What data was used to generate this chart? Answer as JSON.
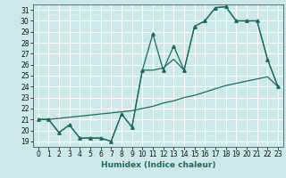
{
  "title": "",
  "xlabel": "Humidex (Indice chaleur)",
  "bg_color": "#cce8e8",
  "grid_color": "#ffffff",
  "line_color": "#1a6b5a",
  "xlim": [
    -0.5,
    23.5
  ],
  "ylim": [
    18.5,
    31.5
  ],
  "xticks": [
    0,
    1,
    2,
    3,
    4,
    5,
    6,
    7,
    8,
    9,
    10,
    11,
    12,
    13,
    14,
    15,
    16,
    17,
    18,
    19,
    20,
    21,
    22,
    23
  ],
  "yticks": [
    19,
    20,
    21,
    22,
    23,
    24,
    25,
    26,
    27,
    28,
    29,
    30,
    31
  ],
  "line1_x": [
    0,
    1,
    2,
    3,
    4,
    5,
    6,
    7,
    8,
    9,
    10,
    11,
    12,
    13,
    14,
    15,
    16,
    17,
    18,
    19,
    20,
    21,
    22,
    23
  ],
  "line1_y": [
    21.0,
    21.0,
    19.8,
    20.5,
    19.3,
    19.3,
    19.3,
    19.0,
    21.5,
    20.3,
    25.5,
    28.8,
    25.5,
    27.7,
    25.5,
    29.5,
    30.0,
    31.2,
    31.3,
    30.0,
    30.0,
    30.0,
    26.5,
    24.0
  ],
  "line2_x": [
    0,
    1,
    2,
    3,
    4,
    5,
    6,
    7,
    8,
    9,
    10,
    11,
    12,
    13,
    14,
    15,
    16,
    17,
    18,
    19,
    20,
    21,
    22,
    23
  ],
  "line2_y": [
    21.0,
    21.0,
    21.1,
    21.2,
    21.3,
    21.4,
    21.5,
    21.6,
    21.7,
    21.8,
    22.0,
    22.2,
    22.5,
    22.7,
    23.0,
    23.2,
    23.5,
    23.8,
    24.1,
    24.3,
    24.5,
    24.7,
    24.9,
    24.0
  ],
  "line3_x": [
    0,
    1,
    2,
    3,
    4,
    5,
    6,
    7,
    8,
    9,
    10,
    11,
    12,
    13,
    14,
    15,
    16,
    17,
    18,
    19,
    20,
    21,
    22,
    23
  ],
  "line3_y": [
    21.0,
    21.0,
    19.8,
    20.5,
    19.3,
    19.3,
    19.3,
    19.0,
    21.5,
    20.3,
    25.5,
    25.5,
    25.7,
    26.5,
    25.5,
    29.5,
    30.0,
    31.2,
    31.3,
    30.0,
    30.0,
    30.0,
    26.5,
    24.0
  ]
}
